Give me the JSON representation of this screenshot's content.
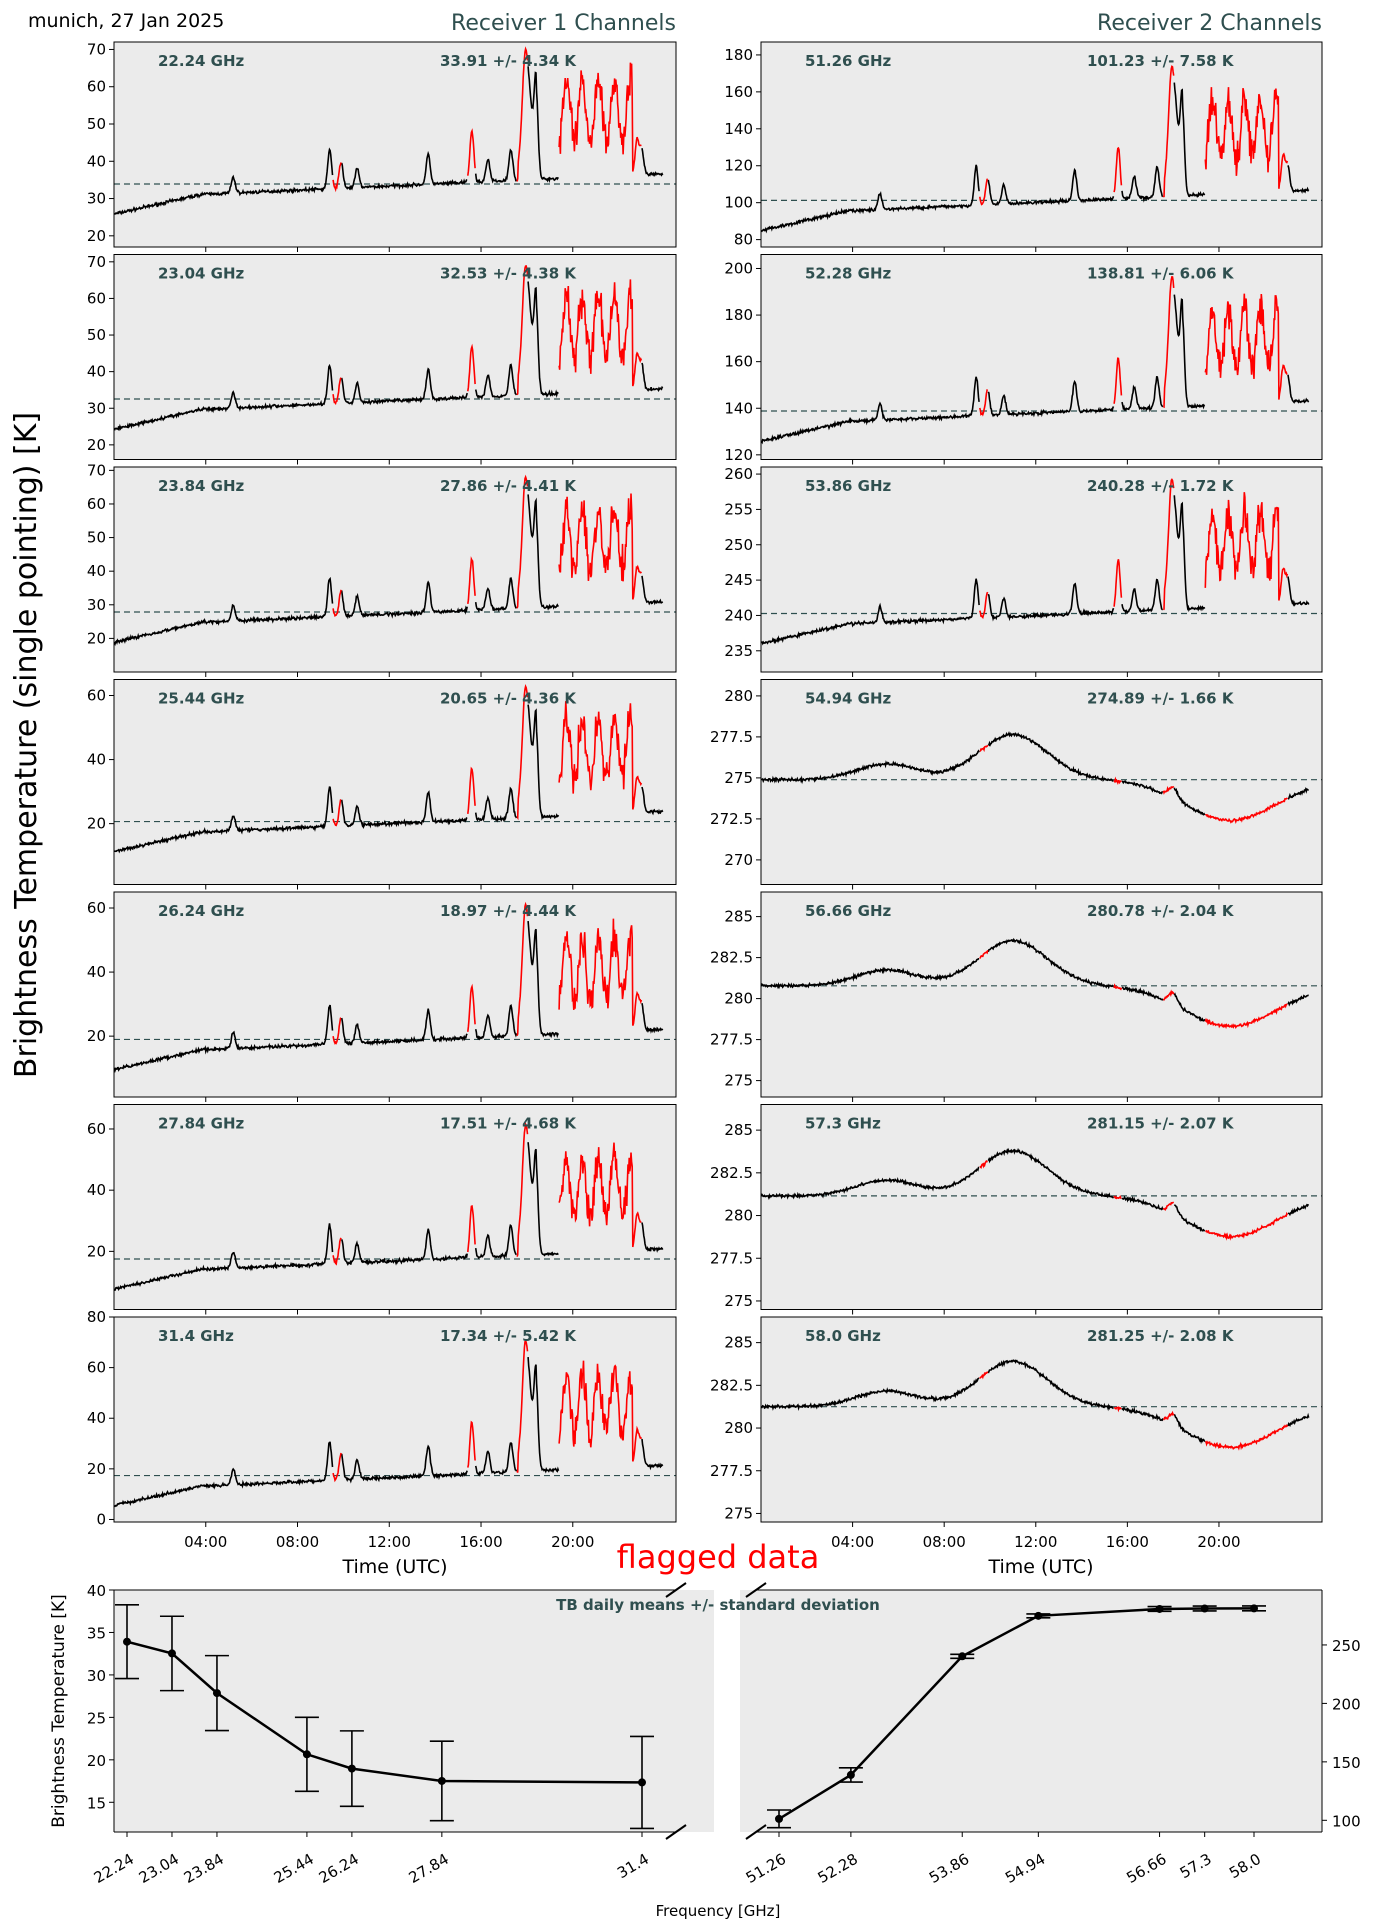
{
  "figure": {
    "location_date": "munich, 27 Jan 2025",
    "receiver1_title": "Receiver 1 Channels",
    "receiver2_title": "Receiver 2 Channels",
    "y_label": "Brightness Temperature (single pointing) [K]",
    "time_xlabel": "Time (UTC)",
    "time_ticks": [
      "04:00",
      "08:00",
      "12:00",
      "16:00",
      "20:00"
    ],
    "flagged_label": "flagged data",
    "colors": {
      "panel_background": "#ebebeb",
      "trace": "#000000",
      "flagged": "#ff0000",
      "mean_line": "#2f4f4f",
      "label": "#2f4f4f"
    }
  },
  "chart_data": [
    {
      "type": "line",
      "receiver": 1,
      "channel": "22.24 GHz",
      "stats": "33.91 +/- 4.34 K",
      "mean": 33.91,
      "ylim": [
        17,
        72
      ],
      "yticks": [
        20,
        30,
        40,
        50,
        60,
        70
      ],
      "xlim_hours": [
        0,
        24.5
      ]
    },
    {
      "type": "line",
      "receiver": 1,
      "channel": "23.04 GHz",
      "stats": "32.53 +/- 4.38 K",
      "mean": 32.53,
      "ylim": [
        16,
        72
      ],
      "yticks": [
        20,
        30,
        40,
        50,
        60,
        70
      ],
      "xlim_hours": [
        0,
        24.5
      ]
    },
    {
      "type": "line",
      "receiver": 1,
      "channel": "23.84 GHz",
      "stats": "27.86 +/- 4.41 K",
      "mean": 27.86,
      "ylim": [
        10,
        71
      ],
      "yticks": [
        20,
        30,
        40,
        50,
        60,
        70
      ],
      "xlim_hours": [
        0,
        24.5
      ]
    },
    {
      "type": "line",
      "receiver": 1,
      "channel": "25.44 GHz",
      "stats": "20.65 +/- 4.36 K",
      "mean": 20.65,
      "ylim": [
        1,
        65
      ],
      "yticks": [
        20,
        40,
        60
      ],
      "xlim_hours": [
        0,
        24.5
      ]
    },
    {
      "type": "line",
      "receiver": 1,
      "channel": "26.24 GHz",
      "stats": "18.97 +/- 4.44 K",
      "mean": 18.97,
      "ylim": [
        1,
        65
      ],
      "yticks": [
        20,
        40,
        60
      ],
      "xlim_hours": [
        0,
        24.5
      ]
    },
    {
      "type": "line",
      "receiver": 1,
      "channel": "27.84 GHz",
      "stats": "17.51 +/- 4.68 K",
      "mean": 17.51,
      "ylim": [
        1,
        68
      ],
      "yticks": [
        20,
        40,
        60
      ],
      "xlim_hours": [
        0,
        24.5
      ]
    },
    {
      "type": "line",
      "receiver": 1,
      "channel": "31.4 GHz",
      "stats": "17.34 +/- 5.42 K",
      "mean": 17.34,
      "ylim": [
        -1,
        80
      ],
      "yticks": [
        0,
        20,
        40,
        60,
        80
      ],
      "xlim_hours": [
        0,
        24.5
      ]
    },
    {
      "type": "line",
      "receiver": 2,
      "channel": "51.26 GHz",
      "stats": "101.23 +/- 7.58 K",
      "mean": 101.23,
      "ylim": [
        76,
        187
      ],
      "yticks": [
        80,
        100,
        120,
        140,
        160,
        180
      ],
      "xlim_hours": [
        0,
        24.5
      ]
    },
    {
      "type": "line",
      "receiver": 2,
      "channel": "52.28 GHz",
      "stats": "138.81 +/- 6.06 K",
      "mean": 138.81,
      "ylim": [
        118,
        206
      ],
      "yticks": [
        120,
        140,
        160,
        180,
        200
      ],
      "xlim_hours": [
        0,
        24.5
      ]
    },
    {
      "type": "line",
      "receiver": 2,
      "channel": "53.86 GHz",
      "stats": "240.28 +/- 1.72 K",
      "mean": 240.28,
      "ylim": [
        232,
        261
      ],
      "yticks": [
        235,
        240,
        245,
        250,
        255,
        260
      ],
      "xlim_hours": [
        0,
        24.5
      ]
    },
    {
      "type": "line",
      "receiver": 2,
      "channel": "54.94 GHz",
      "stats": "274.89 +/- 1.66 K",
      "mean": 274.89,
      "ylim": [
        268.5,
        281
      ],
      "yticks": [
        270.0,
        272.5,
        275.0,
        277.5,
        280.0
      ],
      "xlim_hours": [
        0,
        24.5
      ]
    },
    {
      "type": "line",
      "receiver": 2,
      "channel": "56.66 GHz",
      "stats": "280.78 +/- 2.04 K",
      "mean": 280.78,
      "ylim": [
        274,
        286.5
      ],
      "yticks": [
        275.0,
        277.5,
        280.0,
        282.5,
        285.0
      ],
      "xlim_hours": [
        0,
        24.5
      ]
    },
    {
      "type": "line",
      "receiver": 2,
      "channel": "57.3 GHz",
      "stats": "281.15 +/- 2.07 K",
      "mean": 281.15,
      "ylim": [
        274.5,
        286.5
      ],
      "yticks": [
        275.0,
        277.5,
        280.0,
        282.5,
        285.0
      ],
      "xlim_hours": [
        0,
        24.5
      ]
    },
    {
      "type": "line",
      "receiver": 2,
      "channel": "58.0 GHz",
      "stats": "281.25 +/- 2.08 K",
      "mean": 281.25,
      "ylim": [
        274.5,
        286.5
      ],
      "yticks": [
        275.0,
        277.5,
        280.0,
        282.5,
        285.0
      ],
      "xlim_hours": [
        0,
        24.5
      ]
    },
    {
      "type": "line",
      "title": "TB daily means +/- standard deviation",
      "xlabel": "Frequency [GHz]",
      "ylabel": "Brightness Temperature [K]",
      "left_axis": {
        "ylim": [
          11.5,
          40
        ],
        "yticks": [
          15,
          20,
          25,
          30,
          35,
          40
        ],
        "x": [
          22.24,
          23.04,
          23.84,
          25.44,
          26.24,
          27.84,
          31.4
        ],
        "tick_labels": [
          "22.24",
          "23.04",
          "23.84",
          "25.44",
          "26.24",
          "27.84",
          "31.4"
        ],
        "y": [
          33.91,
          32.53,
          27.86,
          20.65,
          18.97,
          17.51,
          17.34
        ],
        "err": [
          4.34,
          4.38,
          4.41,
          4.36,
          4.44,
          4.68,
          5.42
        ]
      },
      "right_axis": {
        "ylim": [
          90,
          297
        ],
        "yticks": [
          100,
          150,
          200,
          250
        ],
        "x": [
          51.26,
          52.28,
          53.86,
          54.94,
          56.66,
          57.3,
          58.0
        ],
        "tick_labels": [
          "51.26",
          "52.28",
          "53.86",
          "54.94",
          "56.66",
          "57.3",
          "58.0"
        ],
        "y": [
          101.23,
          138.81,
          240.28,
          274.89,
          280.78,
          281.15,
          281.25
        ],
        "err": [
          7.58,
          6.06,
          1.72,
          1.66,
          2.04,
          2.07,
          2.08
        ]
      }
    }
  ]
}
